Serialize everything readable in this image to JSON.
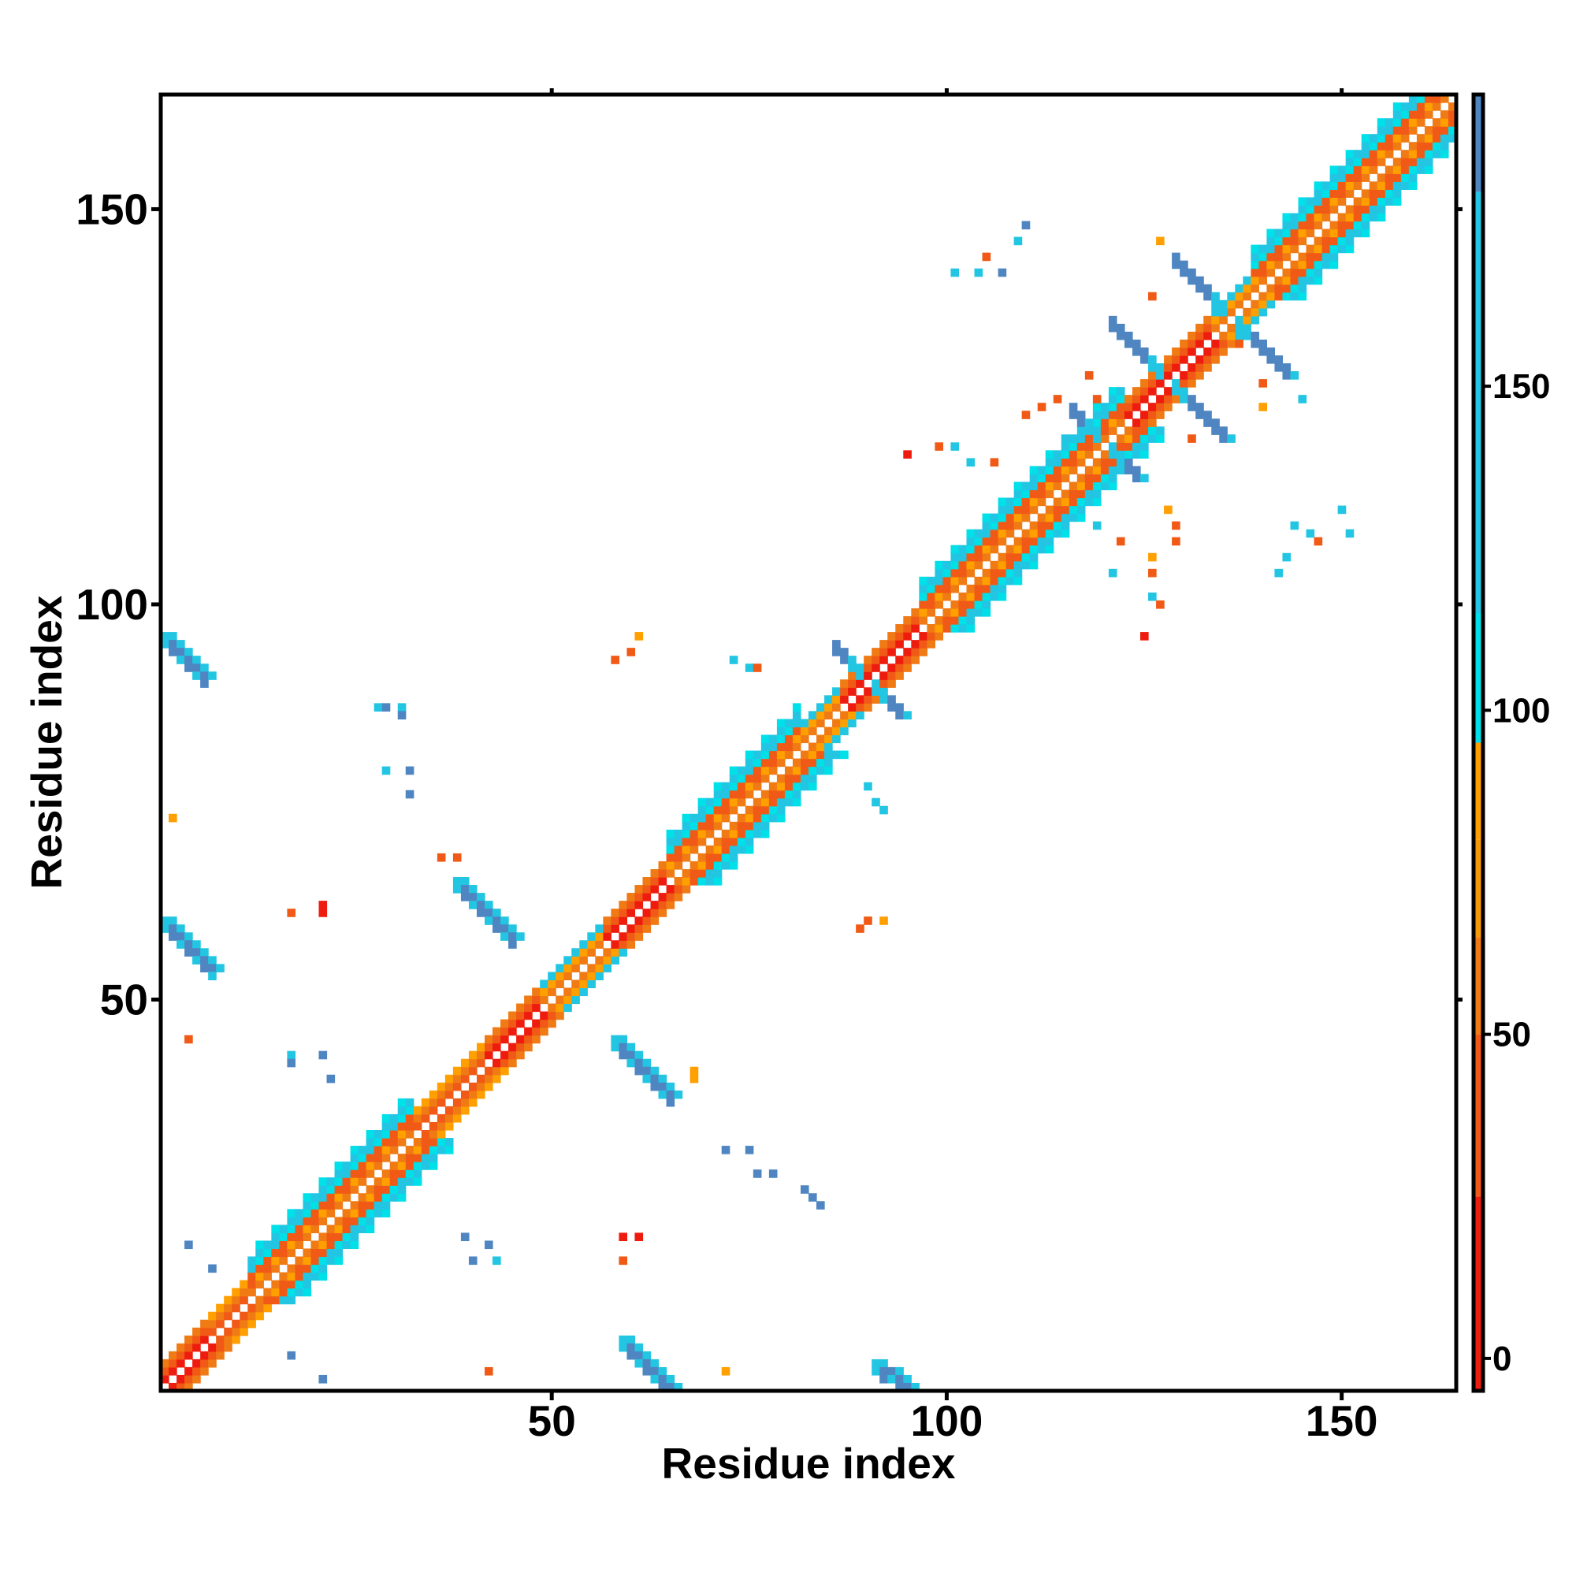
{
  "chart_data": {
    "type": "heatmap",
    "xlabel": "Residue index",
    "ylabel": "Residue index",
    "xlim": [
      0.5,
      164.5
    ],
    "ylim": [
      0.5,
      164.5
    ],
    "x_ticks": [
      50,
      100,
      150
    ],
    "y_ticks": [
      50,
      100,
      150
    ],
    "colorbar": {
      "ticks": [
        0,
        50,
        100,
        150
      ],
      "range": [
        -5,
        195
      ],
      "bands": [
        {
          "from": -5,
          "to": 25,
          "color": "#ee1c0e"
        },
        {
          "from": 25,
          "to": 50,
          "color": "#f05a16"
        },
        {
          "from": 50,
          "to": 65,
          "color": "#f07a14"
        },
        {
          "from": 65,
          "to": 80,
          "color": "#f49a0a"
        },
        {
          "from": 80,
          "to": 95,
          "color": "#ff9f00"
        },
        {
          "from": 95,
          "to": 115,
          "color": "#00e0e8"
        },
        {
          "from": 115,
          "to": 180,
          "color": "#23c6e2"
        },
        {
          "from": 180,
          "to": 195,
          "color": "#4f86c2"
        }
      ]
    },
    "colors": {
      "red": "#ee1c0e",
      "orange_red": "#f05a16",
      "orange": "#f07a14",
      "amber": "#ff9f00",
      "cyan": "#00e0e8",
      "sky": "#23c6e2",
      "steel_blue": "#4f86c2"
    },
    "diagonal_bands": [
      {
        "start": 1,
        "end": 6,
        "width": 3,
        "style": "red"
      },
      {
        "start": 7,
        "end": 11,
        "width": 3,
        "style": "orange"
      },
      {
        "start": 12,
        "end": 32,
        "width": 4,
        "style": "helix"
      },
      {
        "start": 33,
        "end": 41,
        "width": 3,
        "style": "orange"
      },
      {
        "start": 42,
        "end": 48,
        "width": 3,
        "style": "red"
      },
      {
        "start": 49,
        "end": 56,
        "width": 3,
        "style": "mixed"
      },
      {
        "start": 57,
        "end": 64,
        "width": 3,
        "style": "red"
      },
      {
        "start": 65,
        "end": 81,
        "width": 4,
        "style": "helix"
      },
      {
        "start": 82,
        "end": 86,
        "width": 3,
        "style": "mixed"
      },
      {
        "start": 87,
        "end": 96,
        "width": 3,
        "style": "red"
      },
      {
        "start": 97,
        "end": 122,
        "width": 4,
        "style": "helix"
      },
      {
        "start": 123,
        "end": 127,
        "width": 3,
        "style": "red"
      },
      {
        "start": 128,
        "end": 133,
        "width": 3,
        "style": "red"
      },
      {
        "start": 134,
        "end": 138,
        "width": 3,
        "style": "mixed"
      },
      {
        "start": 139,
        "end": 164,
        "width": 4,
        "style": "helix"
      }
    ],
    "antidiagonal_bars": [
      {
        "center": [
          90,
          90
        ],
        "half_length": 4,
        "color": "steel_blue"
      },
      {
        "center": [
          120,
          120
        ],
        "half_length": 4,
        "color": "steel_blue"
      },
      {
        "center": [
          128,
          128
        ],
        "half_length": 7,
        "color": "steel_blue"
      },
      {
        "center": [
          136,
          136
        ],
        "half_length": 7,
        "color": "steel_blue"
      }
    ],
    "offdiagonal_strands": [
      {
        "from": [
          59,
          7
        ],
        "to": [
          65,
          1
        ]
      },
      {
        "from": [
          91,
          4
        ],
        "to": [
          95,
          1
        ]
      },
      {
        "from": [
          58,
          45
        ],
        "to": [
          65,
          38
        ]
      },
      {
        "from": [
          38,
          65
        ],
        "to": [
          45,
          58
        ]
      },
      {
        "from": [
          1,
          60
        ],
        "to": [
          7,
          54
        ]
      },
      {
        "from": [
          1,
          96
        ],
        "to": [
          6,
          91
        ]
      }
    ],
    "scatter_points": [
      [
        4,
        45,
        "orange_red"
      ],
      [
        2,
        73,
        "amber"
      ],
      [
        4,
        19,
        "steel_blue"
      ],
      [
        7,
        16,
        "steel_blue"
      ],
      [
        17,
        5,
        "steel_blue"
      ],
      [
        21,
        2,
        "steel_blue"
      ],
      [
        17,
        43,
        "sky"
      ],
      [
        17,
        42,
        "steel_blue"
      ],
      [
        21,
        43,
        "steel_blue"
      ],
      [
        22,
        40,
        "steel_blue"
      ],
      [
        17,
        61,
        "orange_red"
      ],
      [
        21,
        61,
        "red"
      ],
      [
        21,
        62,
        "red"
      ],
      [
        28,
        87,
        "sky"
      ],
      [
        31,
        87,
        "sky"
      ],
      [
        31,
        86,
        "steel_blue"
      ],
      [
        29,
        87,
        "steel_blue"
      ],
      [
        29,
        79,
        "sky"
      ],
      [
        32,
        79,
        "steel_blue"
      ],
      [
        32,
        76,
        "steel_blue"
      ],
      [
        36,
        68,
        "orange_red"
      ],
      [
        38,
        68,
        "orange_red"
      ],
      [
        39,
        20,
        "steel_blue"
      ],
      [
        42,
        19,
        "steel_blue"
      ],
      [
        40,
        17,
        "steel_blue"
      ],
      [
        43,
        17,
        "sky"
      ],
      [
        42,
        3,
        "orange_red"
      ],
      [
        59,
        20,
        "red"
      ],
      [
        61,
        20,
        "red"
      ],
      [
        59,
        17,
        "orange_red"
      ],
      [
        60,
        94,
        "orange_red"
      ],
      [
        61,
        96,
        "amber"
      ],
      [
        58,
        93,
        "orange_red"
      ],
      [
        68,
        40,
        "amber"
      ],
      [
        68,
        41,
        "amber"
      ],
      [
        72,
        31,
        "steel_blue"
      ],
      [
        75,
        31,
        "steel_blue"
      ],
      [
        76,
        28,
        "steel_blue"
      ],
      [
        78,
        28,
        "steel_blue"
      ],
      [
        72,
        3,
        "amber"
      ],
      [
        73,
        93,
        "sky"
      ],
      [
        75,
        92,
        "sky"
      ],
      [
        76,
        92,
        "orange_red"
      ],
      [
        82,
        26,
        "steel_blue"
      ],
      [
        83,
        25,
        "steel_blue"
      ],
      [
        84,
        24,
        "steel_blue"
      ],
      [
        90,
        77,
        "sky"
      ],
      [
        91,
        75,
        "sky"
      ],
      [
        92,
        74,
        "sky"
      ],
      [
        89,
        59,
        "orange_red"
      ],
      [
        90,
        60,
        "orange_red"
      ],
      [
        92,
        60,
        "amber"
      ],
      [
        95,
        119,
        "red"
      ],
      [
        99,
        120,
        "orange_red"
      ],
      [
        101,
        120,
        "sky"
      ],
      [
        103,
        118,
        "sky"
      ],
      [
        106,
        118,
        "orange_red"
      ],
      [
        101,
        142,
        "sky"
      ],
      [
        104,
        142,
        "sky"
      ],
      [
        105,
        144,
        "orange_red"
      ],
      [
        107,
        142,
        "steel_blue"
      ],
      [
        109,
        146,
        "sky"
      ],
      [
        110,
        148,
        "steel_blue"
      ],
      [
        110,
        124,
        "orange_red"
      ],
      [
        112,
        125,
        "orange_red"
      ],
      [
        114,
        126,
        "orange_red"
      ],
      [
        115,
        121,
        "sky"
      ],
      [
        119,
        126,
        "orange_red"
      ],
      [
        118,
        129,
        "orange_red"
      ],
      [
        119,
        110,
        "sky"
      ],
      [
        122,
        108,
        "orange_red"
      ],
      [
        121,
        104,
        "sky"
      ],
      [
        125,
        96,
        "red"
      ],
      [
        126,
        101,
        "sky"
      ],
      [
        127,
        100,
        "orange_red"
      ],
      [
        126,
        104,
        "orange_red"
      ],
      [
        126,
        106,
        "amber"
      ],
      [
        129,
        108,
        "orange_red"
      ],
      [
        128,
        112,
        "amber"
      ],
      [
        129,
        110,
        "orange_red"
      ],
      [
        127,
        146,
        "amber"
      ],
      [
        126,
        139,
        "orange_red"
      ],
      [
        131,
        121,
        "orange_red"
      ],
      [
        137,
        133,
        "orange_red"
      ],
      [
        140,
        125,
        "amber"
      ],
      [
        144,
        110,
        "sky"
      ],
      [
        146,
        109,
        "sky"
      ],
      [
        147,
        108,
        "orange_red"
      ],
      [
        150,
        112,
        "sky"
      ],
      [
        151,
        109,
        "sky"
      ],
      [
        142,
        104,
        "sky"
      ],
      [
        140,
        128,
        "orange_red"
      ],
      [
        143,
        106,
        "sky"
      ],
      [
        145,
        126,
        "sky"
      ]
    ]
  }
}
